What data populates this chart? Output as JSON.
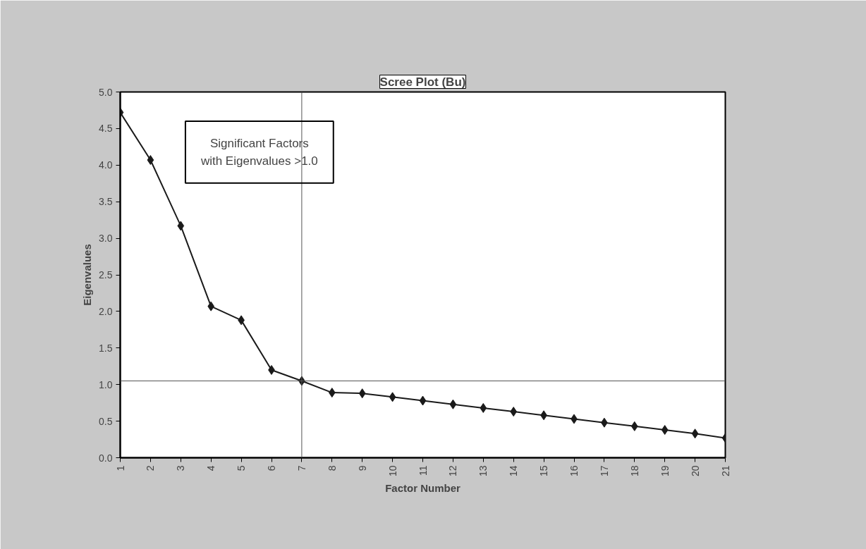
{
  "chart_data": {
    "type": "line",
    "title": "Scree Plot (Bu)",
    "xlabel": "Factor Number",
    "ylabel": "Eigenvalues",
    "x": [
      1,
      2,
      3,
      4,
      5,
      6,
      7,
      8,
      9,
      10,
      11,
      12,
      13,
      14,
      15,
      16,
      17,
      18,
      19,
      20,
      21
    ],
    "series": [
      {
        "color": "#1a1a1a",
        "values": [
          4.72,
          4.07,
          3.17,
          2.07,
          1.88,
          1.2,
          1.05,
          0.89,
          0.88,
          0.83,
          0.78,
          0.73,
          0.68,
          0.63,
          0.58,
          0.53,
          0.48,
          0.43,
          0.38,
          0.33,
          0.27
        ]
      }
    ],
    "xlim": [
      1,
      21
    ],
    "xticks": [
      1,
      2,
      3,
      4,
      5,
      6,
      7,
      8,
      9,
      10,
      11,
      12,
      13,
      14,
      15,
      16,
      17,
      18,
      19,
      20,
      21
    ],
    "ylim": [
      0,
      5
    ],
    "yticks": [
      {
        "value": 0,
        "label": "0.0"
      },
      {
        "value": 0.5,
        "label": "0.5"
      },
      {
        "value": 1,
        "label": "1.0"
      },
      {
        "value": 1.5,
        "label": "1.5"
      },
      {
        "value": 2,
        "label": "2.0"
      },
      {
        "value": 2.5,
        "label": "2.5"
      },
      {
        "value": 3,
        "label": "3.0"
      },
      {
        "value": 3.5,
        "label": "3.5"
      },
      {
        "value": 4,
        "label": "4.0"
      },
      {
        "value": 4.5,
        "label": "4.5"
      },
      {
        "value": 5,
        "label": "5.0"
      }
    ],
    "ref_lines": [
      {
        "axis": "y",
        "value": 1.05,
        "color": "#555555"
      },
      {
        "axis": "x",
        "value": 7,
        "color": "#555555"
      }
    ],
    "annotations": [
      "Significant Factors\nwith Eigenvalues >1.0"
    ],
    "marker": "diamond",
    "line_style": "solid",
    "grid": false
  }
}
